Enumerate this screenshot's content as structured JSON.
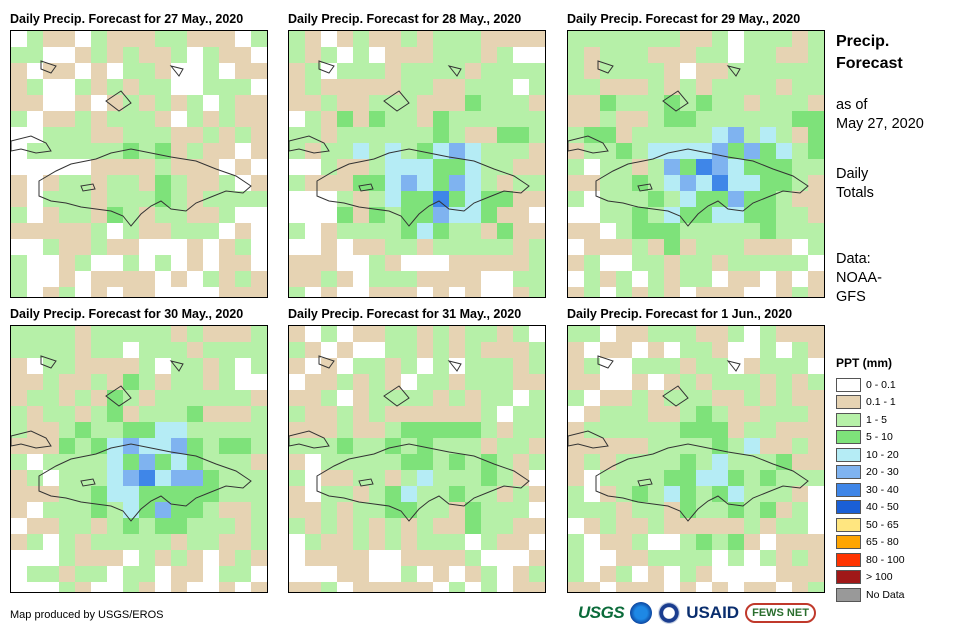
{
  "panels": [
    {
      "title": "Daily Precip. Forecast for 27 May., 2020",
      "seed": 3,
      "wet": 0.25
    },
    {
      "title": "Daily Precip. Forecast for 28 May., 2020",
      "seed": 11,
      "wet": 0.55
    },
    {
      "title": "Daily Precip. Forecast for 29 May., 2020",
      "seed": 23,
      "wet": 0.7
    },
    {
      "title": "Daily Precip. Forecast for 30 May., 2020",
      "seed": 37,
      "wet": 0.6
    },
    {
      "title": "Daily Precip. Forecast for 31 May., 2020",
      "seed": 51,
      "wet": 0.4
    },
    {
      "title": "Daily Precip. Forecast for 1 Jun., 2020",
      "seed": 67,
      "wet": 0.45
    }
  ],
  "side": {
    "title_line1": "Precip.",
    "title_line2": "Forecast",
    "asof_line1": "as of",
    "asof_line2": "May 27, 2020",
    "totals_line1": "Daily",
    "totals_line2": "Totals",
    "data_line1": "Data:",
    "data_line2": "NOAA-",
    "data_line3": "GFS"
  },
  "legend": {
    "title": "PPT (mm)",
    "items": [
      {
        "label": "0 - 0.1",
        "color": "#ffffff"
      },
      {
        "label": "0.1 - 1",
        "color": "#e6d3b3"
      },
      {
        "label": "1 - 5",
        "color": "#b6f0a8"
      },
      {
        "label": "5 - 10",
        "color": "#7ee27a"
      },
      {
        "label": "10 - 20",
        "color": "#b5ecf5"
      },
      {
        "label": "20 - 30",
        "color": "#7fb3f0"
      },
      {
        "label": "30 - 40",
        "color": "#3f86e8"
      },
      {
        "label": "40 - 50",
        "color": "#1a5fd6"
      },
      {
        "label": "50 - 65",
        "color": "#ffe680"
      },
      {
        "label": "65 - 80",
        "color": "#ffa500"
      },
      {
        "label": "80 - 100",
        "color": "#ff3300"
      },
      {
        "label": "> 100",
        "color": "#a01818"
      },
      {
        "label": "No Data",
        "color": "#999999"
      }
    ]
  },
  "credit": "Map produced by USGS/EROS",
  "logos": {
    "usgs": "USGS",
    "usaid": "USAID",
    "fews": "FEWS NET"
  }
}
